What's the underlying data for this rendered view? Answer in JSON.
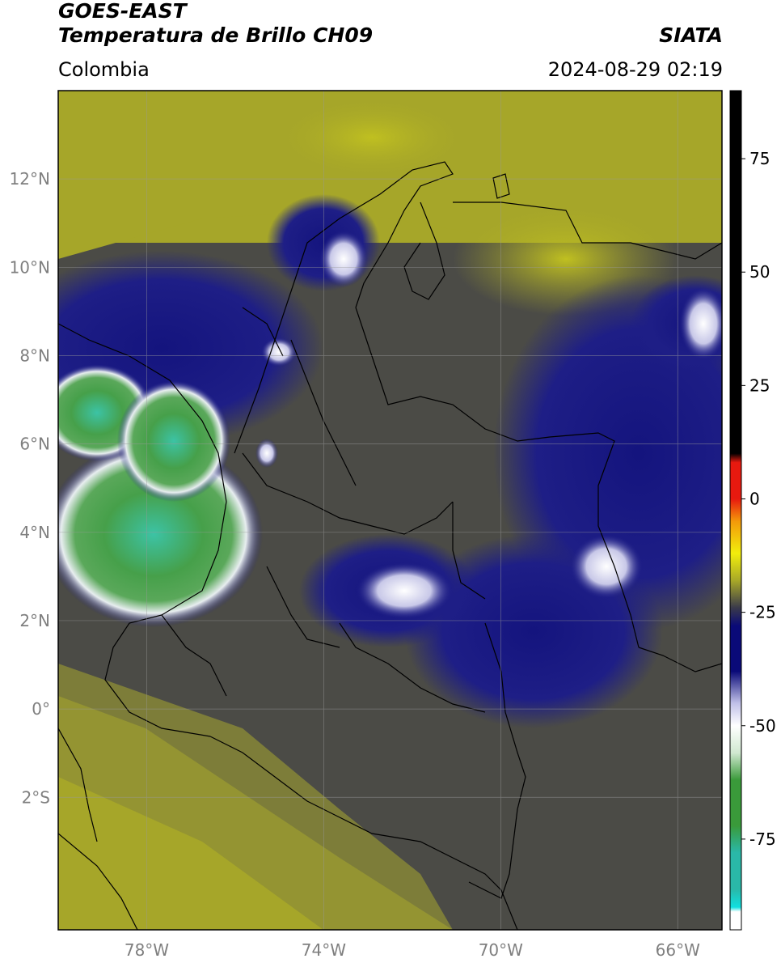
{
  "header": {
    "title_line1": "GOES-EAST",
    "title_line2": "Temperatura de Brillo CH09",
    "agency": "SIATA",
    "region": "Colombia",
    "datetime": "2024-08-29 02:19"
  },
  "map": {
    "lon_range": [
      -80,
      -65
    ],
    "lat_range": [
      -5,
      14
    ],
    "lon_ticks": [
      {
        "value": -78,
        "label": "78°W"
      },
      {
        "value": -74,
        "label": "74°W"
      },
      {
        "value": -70,
        "label": "70°W"
      },
      {
        "value": -66,
        "label": "66°W"
      }
    ],
    "lat_ticks": [
      {
        "value": 12,
        "label": "12°N"
      },
      {
        "value": 10,
        "label": "10°N"
      },
      {
        "value": 8,
        "label": "8°N"
      },
      {
        "value": 6,
        "label": "6°N"
      },
      {
        "value": 4,
        "label": "4°N"
      },
      {
        "value": 2,
        "label": "2°N"
      },
      {
        "value": 0,
        "label": "0°"
      },
      {
        "value": -2,
        "label": "2°S"
      }
    ]
  },
  "colorbar": {
    "range": [
      -95,
      90
    ],
    "ticks": [
      {
        "value": 75,
        "label": "75"
      },
      {
        "value": 50,
        "label": "50"
      },
      {
        "value": 25,
        "label": "25"
      },
      {
        "value": 0,
        "label": "0"
      },
      {
        "value": -25,
        "label": "-25"
      },
      {
        "value": -50,
        "label": "-50"
      },
      {
        "value": -75,
        "label": "-75"
      }
    ],
    "colors": {
      "black_top": "#000000",
      "red": "#e8190f",
      "orange": "#f39a0a",
      "yellow": "#f2ee0c",
      "olive": "#a8a828",
      "gray": "#3a3a4a",
      "navy": "#0a0a78",
      "white": "#ffffff",
      "green": "#3a9a3a",
      "teal": "#2ab8a8",
      "cyan": "#10e0e0"
    }
  },
  "basemap_colors": {
    "olive": "#a6a629",
    "olive_dark": "#8a8a30",
    "gray": "#3b3b4b",
    "navy": "#1a1a84",
    "cloud_white": "#e8eef0",
    "cloud_green": "#46a04a",
    "cloud_teal": "#3cc3a5",
    "border": "#000000"
  }
}
